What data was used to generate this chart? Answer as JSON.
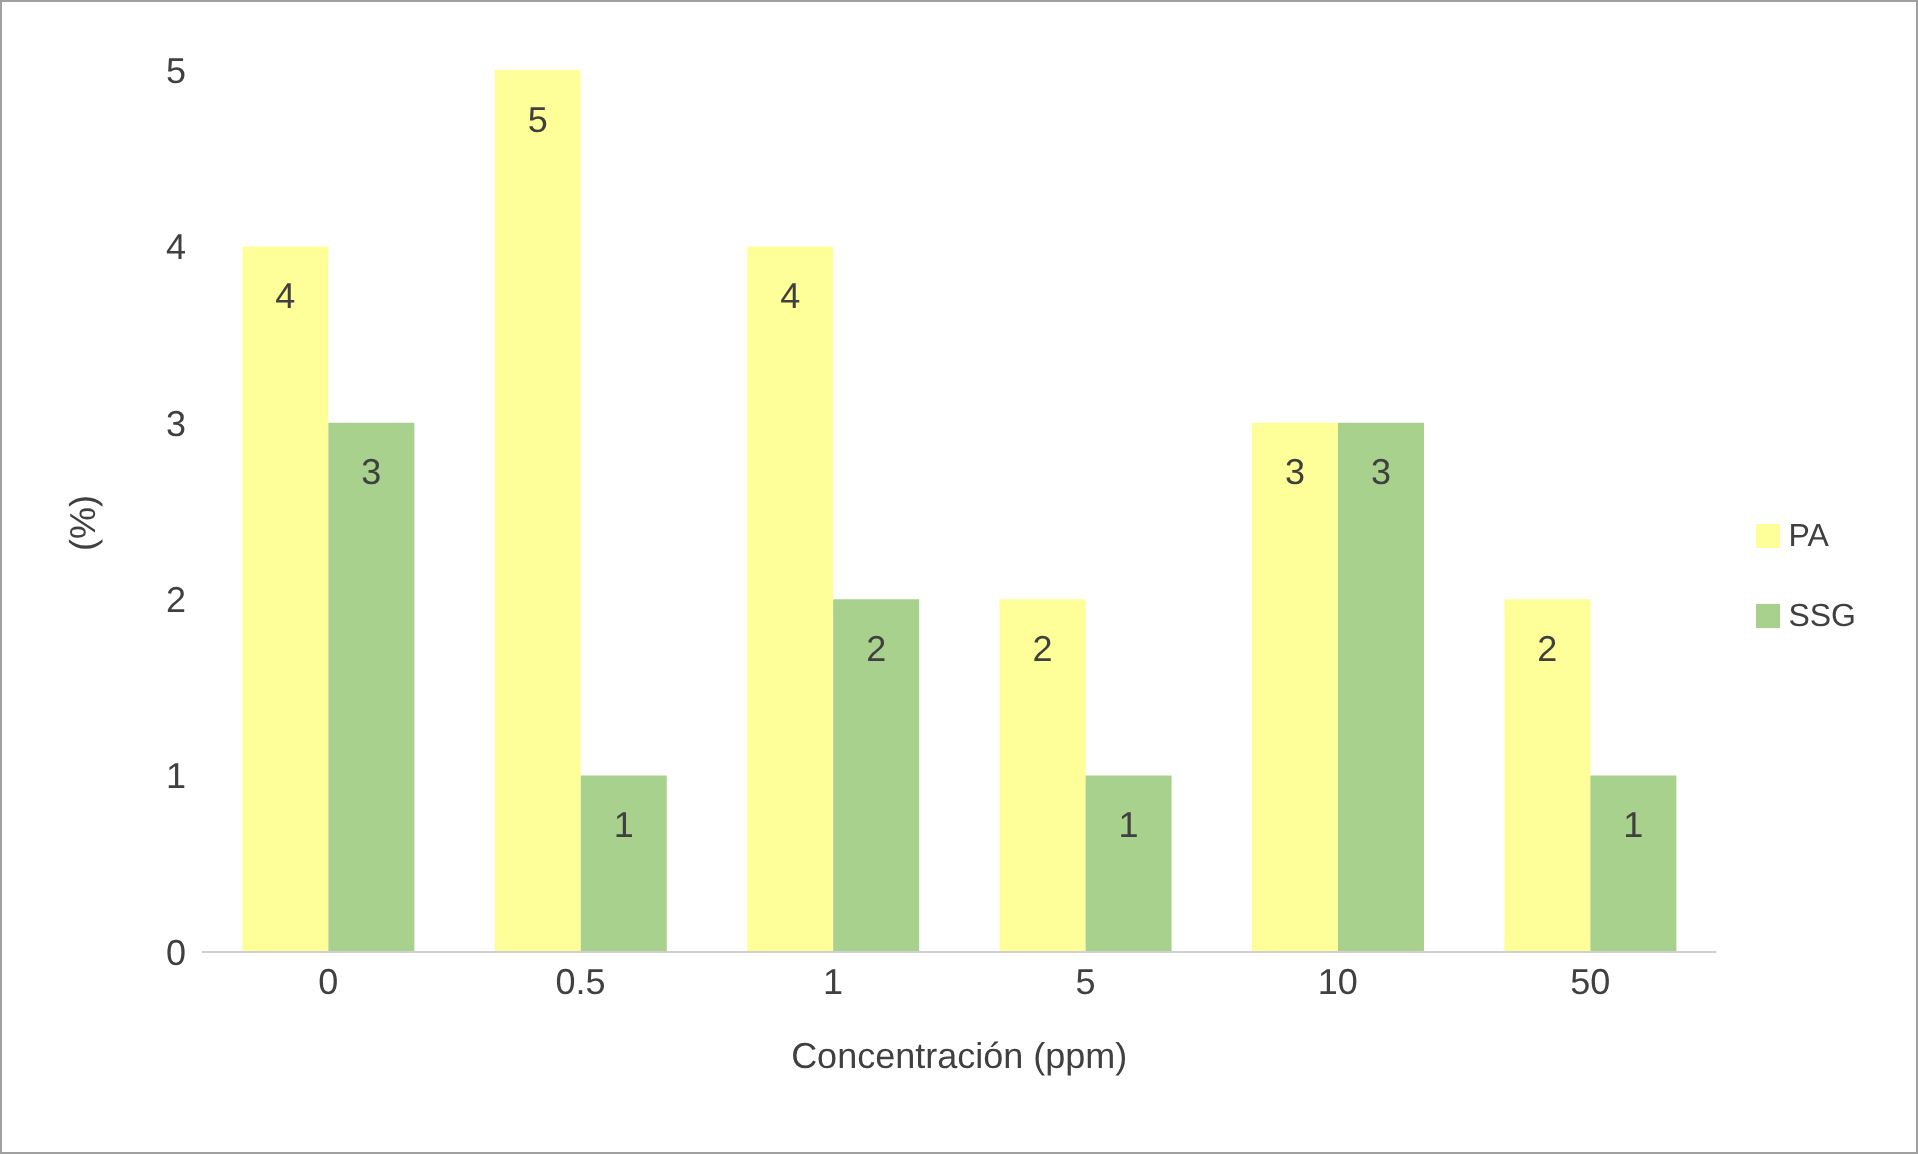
{
  "chart_data": {
    "type": "bar",
    "xlabel": "Concentración (ppm)",
    "ylabel": "(%)",
    "categories": [
      "0",
      "0.5",
      "1",
      "5",
      "10",
      "50"
    ],
    "series": [
      {
        "name": "PA",
        "color": "#ffff99",
        "values": [
          4,
          5,
          4,
          2,
          3,
          2
        ]
      },
      {
        "name": "SSG",
        "color": "#a9d18e",
        "values": [
          3,
          1,
          2,
          1,
          3,
          1
        ]
      }
    ],
    "ylim": [
      0,
      5
    ],
    "yticks": [
      0,
      1,
      2,
      3,
      4,
      5
    ],
    "legend": "right",
    "data_labels": true
  }
}
